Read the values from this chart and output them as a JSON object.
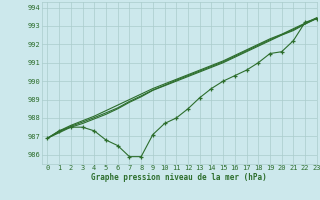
{
  "title": "Graphe pression niveau de la mer (hPa)",
  "bg_color": "#cce8ec",
  "grid_color": "#aacccc",
  "line_color": "#2d6e2d",
  "x_min": -0.5,
  "x_max": 23,
  "y_min": 985.5,
  "y_max": 994.3,
  "y_ticks": [
    986,
    987,
    988,
    989,
    990,
    991,
    992,
    993,
    994
  ],
  "x_ticks": [
    0,
    1,
    2,
    3,
    4,
    5,
    6,
    7,
    8,
    9,
    10,
    11,
    12,
    13,
    14,
    15,
    16,
    17,
    18,
    19,
    20,
    21,
    22,
    23
  ],
  "series_main": [
    986.9,
    987.3,
    987.5,
    987.5,
    987.3,
    986.8,
    986.5,
    985.9,
    985.9,
    987.1,
    987.7,
    988.0,
    988.5,
    989.1,
    989.6,
    990.0,
    990.3,
    990.6,
    991.0,
    991.5,
    991.6,
    992.2,
    993.2,
    993.4
  ],
  "series_smooth1": [
    986.9,
    987.2,
    987.5,
    987.7,
    987.95,
    988.2,
    988.5,
    988.85,
    989.15,
    989.5,
    989.75,
    990.0,
    990.25,
    990.5,
    990.75,
    991.0,
    991.3,
    991.6,
    991.9,
    992.2,
    992.5,
    992.75,
    993.1,
    993.4
  ],
  "series_smooth2": [
    986.9,
    987.3,
    987.6,
    987.85,
    988.1,
    988.4,
    988.7,
    989.0,
    989.3,
    989.6,
    989.85,
    990.1,
    990.35,
    990.6,
    990.85,
    991.1,
    991.4,
    991.7,
    992.0,
    992.3,
    992.55,
    992.85,
    993.15,
    993.45
  ],
  "series_smooth3": [
    986.9,
    987.25,
    987.55,
    987.78,
    988.02,
    988.28,
    988.55,
    988.9,
    989.2,
    989.52,
    989.78,
    990.05,
    990.3,
    990.55,
    990.8,
    991.05,
    991.35,
    991.65,
    991.95,
    992.25,
    992.52,
    992.8,
    993.12,
    993.42
  ]
}
